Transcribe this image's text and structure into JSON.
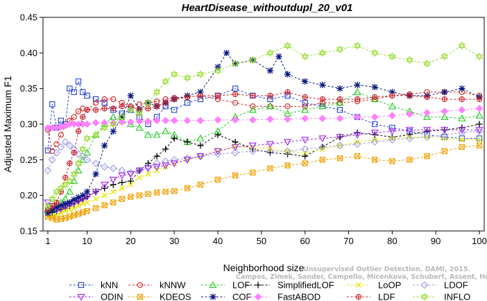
{
  "chart_data": {
    "type": "line",
    "title": "HeartDisease_withoutdupl_20_v01",
    "xlabel": "Neighborhood size",
    "ylabel": "Adjusted Maximum F1",
    "xlim": [
      1,
      100
    ],
    "ylim": [
      0.15,
      0.45
    ],
    "x_ticks": [
      1,
      10,
      20,
      30,
      40,
      50,
      60,
      70,
      80,
      90,
      100
    ],
    "y_ticks": [
      0.15,
      0.2,
      0.25,
      0.3,
      0.35,
      0.4,
      0.45
    ],
    "grid": false,
    "legend_position": "bottom",
    "watermark": [
      "Campos, Zimek, Sander, Campello, Micenkova, Schubert, Assent, Houle",
      "Unsupervised Outlier Detection. DAMI, 2015."
    ],
    "series": [
      {
        "name": "kNN",
        "color": "#1f3fd6",
        "marker": "square",
        "x": [
          1,
          2,
          3,
          4,
          5,
          6,
          7,
          8,
          9,
          10,
          12,
          14,
          16,
          18,
          20,
          22,
          24,
          26,
          28,
          30,
          33,
          36,
          40,
          44,
          48,
          52,
          56,
          60,
          64,
          68,
          72,
          76,
          80,
          84,
          88,
          92,
          96,
          100
        ],
        "y": [
          0.263,
          0.328,
          0.295,
          0.305,
          0.3,
          0.35,
          0.345,
          0.36,
          0.345,
          0.34,
          0.335,
          0.33,
          0.32,
          0.315,
          0.32,
          0.31,
          0.3,
          0.31,
          0.325,
          0.32,
          0.33,
          0.335,
          0.34,
          0.35,
          0.34,
          0.335,
          0.34,
          0.33,
          0.325,
          0.32,
          0.31,
          0.3,
          0.295,
          0.29,
          0.285,
          0.282,
          0.28,
          0.28
        ]
      },
      {
        "name": "kNNW",
        "color": "#d62020",
        "marker": "circle",
        "x": [
          1,
          2,
          3,
          4,
          5,
          6,
          7,
          8,
          9,
          10,
          12,
          14,
          16,
          18,
          20,
          22,
          24,
          26,
          28,
          30,
          33,
          36,
          40,
          44,
          48,
          52,
          56,
          60,
          64,
          68,
          72,
          76,
          80,
          84,
          88,
          92,
          96,
          100
        ],
        "y": [
          0.292,
          0.262,
          0.272,
          0.285,
          0.298,
          0.305,
          0.31,
          0.318,
          0.322,
          0.32,
          0.33,
          0.335,
          0.335,
          0.33,
          0.325,
          0.328,
          0.33,
          0.332,
          0.335,
          0.337,
          0.338,
          0.34,
          0.335,
          0.33,
          0.325,
          0.325,
          0.325,
          0.325,
          0.33,
          0.33,
          0.332,
          0.335,
          0.34,
          0.342,
          0.345,
          0.345,
          0.345,
          0.34
        ]
      },
      {
        "name": "LOF",
        "color": "#22cc22",
        "marker": "triangle",
        "x": [
          1,
          2,
          3,
          4,
          5,
          6,
          7,
          8,
          9,
          10,
          12,
          14,
          16,
          18,
          20,
          22,
          24,
          26,
          28,
          30,
          33,
          36,
          40,
          44,
          48,
          52,
          56,
          60,
          64,
          68,
          72,
          76,
          80,
          84,
          88,
          92,
          96,
          100
        ],
        "y": [
          0.18,
          0.175,
          0.185,
          0.19,
          0.195,
          0.205,
          0.22,
          0.235,
          0.25,
          0.26,
          0.285,
          0.3,
          0.31,
          0.305,
          0.3,
          0.295,
          0.285,
          0.285,
          0.29,
          0.285,
          0.275,
          0.28,
          0.29,
          0.31,
          0.32,
          0.325,
          0.315,
          0.32,
          0.325,
          0.33,
          0.345,
          0.335,
          0.325,
          0.318,
          0.31,
          0.31,
          0.308,
          0.312
        ]
      },
      {
        "name": "SimplifiedLOF",
        "color": "#000000",
        "marker": "plus",
        "x": [
          1,
          2,
          3,
          4,
          5,
          6,
          7,
          8,
          9,
          10,
          12,
          14,
          16,
          18,
          20,
          22,
          24,
          26,
          28,
          30,
          33,
          36,
          40,
          44,
          48,
          52,
          56,
          60,
          64,
          68,
          72,
          76,
          80,
          84,
          88,
          92,
          96,
          100
        ],
        "y": [
          0.178,
          0.176,
          0.178,
          0.18,
          0.182,
          0.185,
          0.188,
          0.192,
          0.195,
          0.198,
          0.205,
          0.21,
          0.215,
          0.218,
          0.22,
          0.235,
          0.245,
          0.255,
          0.265,
          0.28,
          0.275,
          0.27,
          0.285,
          0.275,
          0.265,
          0.26,
          0.258,
          0.255,
          0.268,
          0.282,
          0.288,
          0.285,
          0.282,
          0.285,
          0.29,
          0.292,
          0.295,
          0.3
        ]
      },
      {
        "name": "LoOP",
        "color": "#e6e600",
        "marker": "cross",
        "x": [
          1,
          2,
          3,
          4,
          5,
          6,
          7,
          8,
          9,
          10,
          12,
          14,
          16,
          18,
          20,
          22,
          24,
          26,
          28,
          30,
          33,
          36,
          40,
          44,
          48,
          52,
          56,
          60,
          64,
          68,
          72,
          76,
          80,
          84,
          88,
          92,
          96,
          100
        ],
        "y": [
          0.17,
          0.17,
          0.172,
          0.175,
          0.178,
          0.18,
          0.182,
          0.185,
          0.188,
          0.19,
          0.195,
          0.2,
          0.205,
          0.21,
          0.215,
          0.225,
          0.23,
          0.235,
          0.24,
          0.245,
          0.25,
          0.255,
          0.262,
          0.268,
          0.268,
          0.265,
          0.262,
          0.26,
          0.265,
          0.27,
          0.275,
          0.278,
          0.28,
          0.282,
          0.282,
          0.28,
          0.278,
          0.278
        ]
      },
      {
        "name": "LDOF",
        "color": "#9a9ae6",
        "marker": "diamond",
        "x": [
          1,
          2,
          3,
          4,
          5,
          6,
          7,
          8,
          9,
          10,
          12,
          14,
          16,
          18,
          20,
          22,
          24,
          26,
          28,
          30,
          33,
          36,
          40,
          44,
          48,
          52,
          56,
          60,
          64,
          68,
          72,
          76,
          80,
          84,
          88,
          92,
          96,
          100
        ],
        "y": [
          0.235,
          0.25,
          0.26,
          0.268,
          0.275,
          0.27,
          0.265,
          0.258,
          0.255,
          0.25,
          0.245,
          0.24,
          0.238,
          0.235,
          0.232,
          0.235,
          0.24,
          0.245,
          0.248,
          0.25,
          0.252,
          0.255,
          0.258,
          0.26,
          0.262,
          0.262,
          0.262,
          0.265,
          0.268,
          0.27,
          0.272,
          0.275,
          0.278,
          0.28,
          0.282,
          0.285,
          0.288,
          0.29
        ]
      },
      {
        "name": "ODIN",
        "color": "#a020f0",
        "marker": "triangle-down",
        "x": [
          1,
          2,
          3,
          4,
          5,
          6,
          7,
          8,
          9,
          10,
          12,
          14,
          16,
          18,
          20,
          22,
          24,
          26,
          28,
          30,
          33,
          36,
          40,
          44,
          48,
          52,
          56,
          60,
          64,
          68,
          72,
          76,
          80,
          84,
          88,
          92,
          96,
          100
        ],
        "y": [
          0.19,
          0.185,
          0.18,
          0.182,
          0.185,
          0.188,
          0.19,
          0.192,
          0.195,
          0.198,
          0.205,
          0.215,
          0.222,
          0.228,
          0.23,
          0.235,
          0.238,
          0.24,
          0.242,
          0.245,
          0.25,
          0.255,
          0.262,
          0.268,
          0.27,
          0.272,
          0.275,
          0.278,
          0.28,
          0.282,
          0.285,
          0.288,
          0.29,
          0.292,
          0.292,
          0.292,
          0.292,
          0.292
        ]
      },
      {
        "name": "KDEOS",
        "color": "#f0a000",
        "marker": "square-x",
        "x": [
          1,
          2,
          3,
          4,
          5,
          6,
          7,
          8,
          9,
          10,
          12,
          14,
          16,
          18,
          20,
          22,
          24,
          26,
          28,
          30,
          33,
          36,
          40,
          44,
          48,
          52,
          56,
          60,
          64,
          68,
          72,
          76,
          80,
          84,
          88,
          92,
          96,
          100
        ],
        "y": [
          0.17,
          0.168,
          0.166,
          0.167,
          0.168,
          0.17,
          0.172,
          0.174,
          0.176,
          0.178,
          0.182,
          0.186,
          0.19,
          0.195,
          0.198,
          0.2,
          0.202,
          0.204,
          0.205,
          0.206,
          0.21,
          0.215,
          0.222,
          0.228,
          0.232,
          0.238,
          0.242,
          0.245,
          0.25,
          0.252,
          0.255,
          0.25,
          0.248,
          0.25,
          0.255,
          0.262,
          0.268,
          0.27
        ]
      },
      {
        "name": "COF",
        "color": "#0a1a80",
        "marker": "asterisk",
        "x": [
          1,
          2,
          3,
          4,
          5,
          6,
          7,
          8,
          9,
          10,
          12,
          14,
          16,
          18,
          20,
          22,
          24,
          26,
          28,
          30,
          33,
          36,
          40,
          42,
          44,
          48,
          52,
          54,
          56,
          60,
          64,
          68,
          72,
          76,
          80,
          84,
          88,
          92,
          96,
          100
        ],
        "y": [
          0.175,
          0.18,
          0.183,
          0.186,
          0.188,
          0.19,
          0.194,
          0.197,
          0.2,
          0.205,
          0.23,
          0.27,
          0.29,
          0.31,
          0.34,
          0.32,
          0.33,
          0.325,
          0.33,
          0.335,
          0.34,
          0.345,
          0.38,
          0.4,
          0.385,
          0.39,
          0.375,
          0.395,
          0.37,
          0.36,
          0.355,
          0.35,
          0.355,
          0.352,
          0.345,
          0.34,
          0.34,
          0.345,
          0.35,
          0.338
        ]
      },
      {
        "name": "FastABOD",
        "color": "#ff80ff",
        "marker": "diamond-filled",
        "x": [
          1,
          2,
          3,
          4,
          5,
          6,
          7,
          8,
          9,
          10,
          12,
          14,
          16,
          18,
          20,
          22,
          24,
          26,
          28,
          30,
          33,
          36,
          40,
          44,
          48,
          52,
          56,
          60,
          64,
          68,
          72,
          76,
          80,
          84,
          88,
          92,
          96,
          100
        ],
        "y": [
          0.295,
          0.295,
          0.295,
          0.296,
          0.298,
          0.3,
          0.3,
          0.3,
          0.3,
          0.3,
          0.302,
          0.302,
          0.302,
          0.303,
          0.303,
          0.304,
          0.304,
          0.305,
          0.305,
          0.305,
          0.305,
          0.305,
          0.306,
          0.306,
          0.306,
          0.307,
          0.307,
          0.308,
          0.308,
          0.308,
          0.31,
          0.31,
          0.312,
          0.314,
          0.316,
          0.318,
          0.32,
          0.322
        ]
      },
      {
        "name": "LDF",
        "color": "#c8202a",
        "marker": "circle-plus",
        "x": [
          1,
          2,
          3,
          4,
          5,
          6,
          7,
          8,
          9,
          10,
          12,
          14,
          16,
          18,
          20,
          22,
          24,
          26,
          28,
          30,
          33,
          36,
          40,
          44,
          48,
          52,
          56,
          60,
          64,
          68,
          72,
          76,
          80,
          84,
          88,
          92,
          96,
          100
        ],
        "y": [
          0.18,
          0.185,
          0.19,
          0.205,
          0.225,
          0.245,
          0.26,
          0.29,
          0.31,
          0.32,
          0.32,
          0.322,
          0.322,
          0.325,
          0.325,
          0.32,
          0.322,
          0.325,
          0.33,
          0.335,
          0.338,
          0.34,
          0.34,
          0.342,
          0.34,
          0.34,
          0.345,
          0.338,
          0.335,
          0.335,
          0.335,
          0.338,
          0.34,
          0.34,
          0.338,
          0.335,
          0.335,
          0.335
        ]
      },
      {
        "name": "INFLO",
        "color": "#99dd33",
        "marker": "hexagram",
        "x": [
          1,
          2,
          3,
          4,
          5,
          6,
          7,
          8,
          9,
          10,
          12,
          14,
          16,
          18,
          20,
          22,
          24,
          26,
          28,
          30,
          33,
          36,
          40,
          44,
          48,
          52,
          56,
          60,
          64,
          68,
          72,
          76,
          80,
          84,
          88,
          92,
          96,
          100
        ],
        "y": [
          0.185,
          0.195,
          0.205,
          0.21,
          0.215,
          0.22,
          0.23,
          0.245,
          0.265,
          0.28,
          0.285,
          0.295,
          0.3,
          0.31,
          0.32,
          0.315,
          0.33,
          0.345,
          0.36,
          0.37,
          0.365,
          0.37,
          0.375,
          0.385,
          0.39,
          0.4,
          0.41,
          0.395,
          0.4,
          0.405,
          0.41,
          0.4,
          0.395,
          0.39,
          0.385,
          0.395,
          0.41,
          0.395
        ]
      }
    ]
  }
}
